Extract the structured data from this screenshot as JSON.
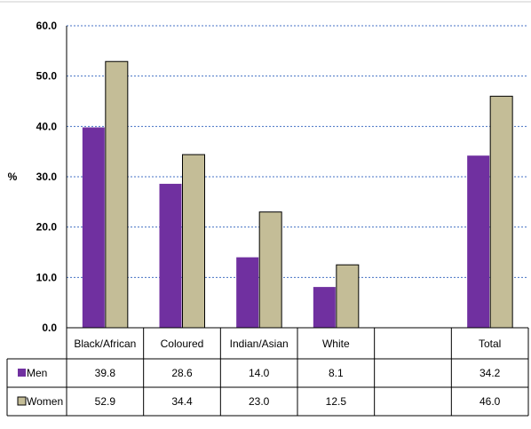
{
  "chart_data": {
    "type": "bar",
    "categories": [
      "Black/African",
      "Coloured",
      "Indian/Asian",
      "White",
      "",
      "Total"
    ],
    "series": [
      {
        "name": "Men",
        "values": [
          39.8,
          28.6,
          14.0,
          8.1,
          null,
          34.2
        ],
        "color": "#7030A0",
        "labels": [
          "39.8",
          "28.6",
          "14.0",
          "8.1",
          "",
          "34.2"
        ]
      },
      {
        "name": "Women",
        "values": [
          52.9,
          34.4,
          23.0,
          12.5,
          null,
          46.0
        ],
        "color": "#C4BD97",
        "labels": [
          "52.9",
          "34.4",
          "23.0",
          "12.5",
          "",
          "46.0"
        ]
      }
    ],
    "yticks": [
      "0.0",
      "10.0",
      "20.0",
      "30.0",
      "40.0",
      "50.0",
      "60.0"
    ],
    "ylim": [
      0,
      60
    ],
    "ylabel": "%",
    "grid": true,
    "legend": "data-table"
  }
}
